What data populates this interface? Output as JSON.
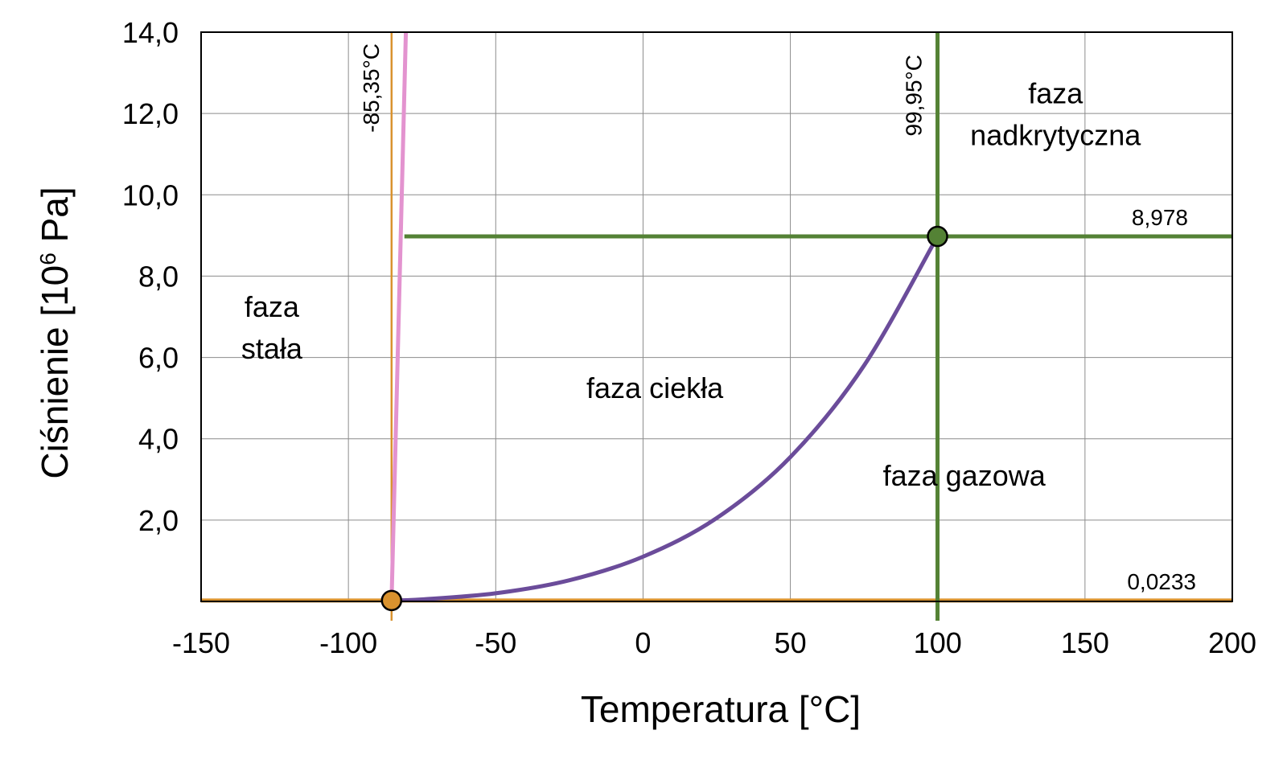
{
  "chart_data": {
    "type": "line",
    "title": "",
    "xlabel": "Temperatura [°C]",
    "ylabel": {
      "prefix": "Ciśnienie [10",
      "superscript": "6",
      "suffix": " Pa]"
    },
    "xlim": [
      -150,
      200
    ],
    "ylim": [
      0,
      14
    ],
    "grid": true,
    "x_ticks": [
      -150,
      -100,
      -50,
      0,
      50,
      100,
      150,
      200
    ],
    "x_tick_labels": [
      "-150",
      "-100",
      "-50",
      "0",
      "50",
      "100",
      "150",
      "200"
    ],
    "y_ticks": [
      2,
      4,
      6,
      8,
      10,
      12,
      14
    ],
    "y_tick_labels": [
      "2,0",
      "4,0",
      "6,0",
      "8,0",
      "10,0",
      "12,0",
      "14,0"
    ],
    "colors": {
      "triple": "#D9922E",
      "critical": "#548235",
      "melting": "#E393CF",
      "vaporization": "#6B4C9A",
      "grid": "#8C8C8C",
      "axes": "#000000",
      "text": "#000000"
    },
    "triple_point": {
      "temperature": -85.35,
      "pressure": 0.0233,
      "temperature_label": "-85,35°C",
      "pressure_label": "0,0233"
    },
    "critical_point": {
      "temperature": 99.95,
      "pressure": 8.978,
      "temperature_label": "99,95°C",
      "pressure_label": "8,978"
    },
    "series": [
      {
        "name": "melting curve",
        "x": [
          -85.35,
          -80.5
        ],
        "y": [
          0.0233,
          14.0
        ]
      },
      {
        "name": "vaporization curve",
        "x": [
          -85.35,
          -75,
          -50,
          -25,
          0,
          25,
          50,
          75,
          99.95
        ],
        "y": [
          0.0233,
          0.05,
          0.2,
          0.52,
          1.1,
          2.05,
          3.55,
          5.8,
          8.978
        ]
      }
    ],
    "critical_pressure_line_x_start": -81,
    "region_labels": [
      {
        "lines": [
          "faza",
          "stała"
        ],
        "x": -126,
        "y": 7.0
      },
      {
        "lines": [
          "faza ciekła"
        ],
        "x": 4,
        "y": 5.0
      },
      {
        "lines": [
          "faza gazowa"
        ],
        "x": 109,
        "y": 2.85
      },
      {
        "lines": [
          "faza",
          "nadkrytyczna"
        ],
        "x": 140,
        "y": 12.25
      }
    ]
  }
}
